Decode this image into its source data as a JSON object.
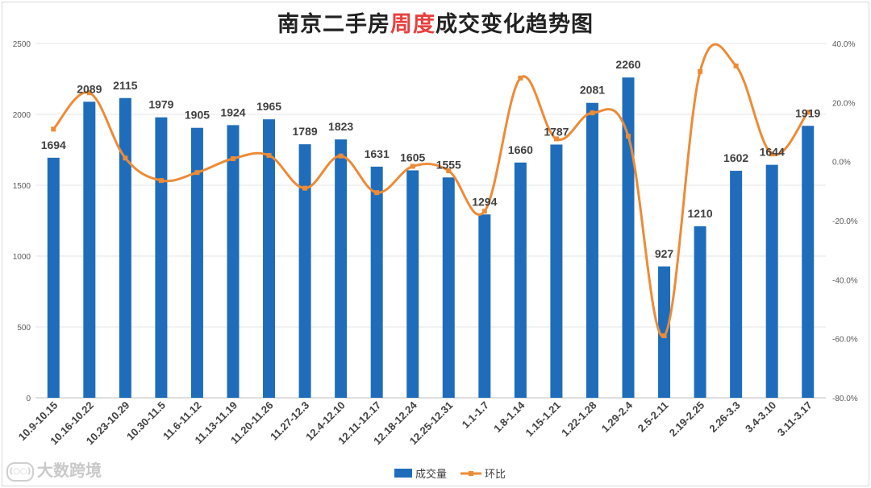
{
  "title": {
    "prefix": "南京二手房",
    "highlight": "周度",
    "suffix": "成交变化趋势图"
  },
  "watermark": "大数跨境",
  "chart_data": {
    "type": "bar+line",
    "categories": [
      "10.9-10.15",
      "10.16-10.22",
      "10.23-10.29",
      "10.30-11.5",
      "11.6-11.12",
      "11.13-11.19",
      "11.20-11.26",
      "11.27-12.3",
      "12.4-12.10",
      "12.11-12.17",
      "12.18-12.24",
      "12.25-12.31",
      "1.1-1.7",
      "1.8-1.14",
      "1.15-1.21",
      "1.22-1.28",
      "1.29-2.4",
      "2.5-2.11",
      "2.19-2.25",
      "2.26-3.3",
      "3.4-3.10",
      "3.11-3.17"
    ],
    "series": [
      {
        "name": "成交量",
        "type": "bar",
        "axis": "left",
        "color": "#1f6dba",
        "values": [
          1694,
          2089,
          2115,
          1979,
          1905,
          1924,
          1965,
          1789,
          1823,
          1631,
          1605,
          1555,
          1294,
          1660,
          1787,
          2081,
          2260,
          927,
          1210,
          1602,
          1644,
          1919
        ]
      },
      {
        "name": "环比",
        "type": "line",
        "axis": "right",
        "color": "#ed8b36",
        "values": [
          11.0,
          23.3,
          1.2,
          -6.4,
          -3.7,
          1.0,
          2.1,
          -9.0,
          1.9,
          -10.5,
          -1.6,
          -3.1,
          -16.8,
          28.3,
          7.7,
          16.5,
          8.6,
          -59.0,
          30.5,
          32.4,
          2.6,
          16.7
        ]
      }
    ],
    "y_left": {
      "min": 0,
      "max": 2500,
      "ticks": [
        "0",
        "500",
        "1000",
        "1500",
        "2000",
        "2500"
      ]
    },
    "y_right": {
      "min": -80,
      "max": 40,
      "ticks": [
        "-80.0%",
        "-60.0%",
        "-40.0%",
        "-20.0%",
        "0.0%",
        "20.0%",
        "40.0%"
      ]
    },
    "legend": {
      "position": "bottom",
      "items": [
        "成交量",
        "环比"
      ]
    }
  }
}
